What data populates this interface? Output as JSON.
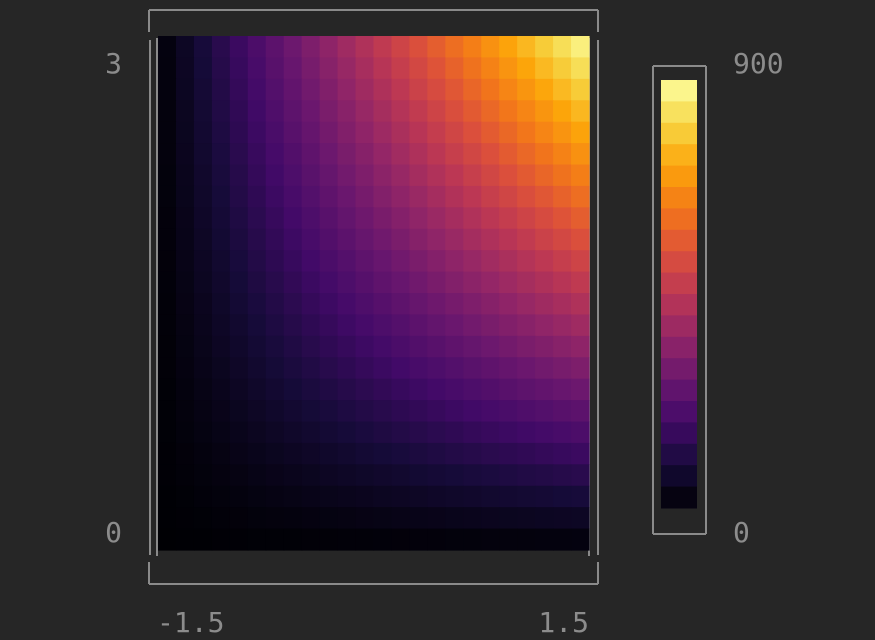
{
  "chart_data": {
    "type": "heatmap",
    "title": "",
    "xlabel": "",
    "ylabel": "",
    "xlim": [
      -1.5,
      1.5
    ],
    "ylim": [
      0,
      3
    ],
    "x_tick_labels": [
      "-1.5",
      "1.5"
    ],
    "y_tick_labels": [
      "0",
      "3"
    ],
    "grid_cols": 24,
    "grid_rows": 24,
    "z_function": "100 * (x + 1.5) * y",
    "colormap": "inferno",
    "colorbar": {
      "range": [
        0,
        900
      ],
      "tick_labels": [
        "0",
        "900"
      ],
      "levels": 20,
      "placement": "right"
    },
    "grid": false
  },
  "colors": {
    "background": "#262626",
    "frame": "#8a8a8a",
    "tick_text": "#8c8c8c"
  }
}
